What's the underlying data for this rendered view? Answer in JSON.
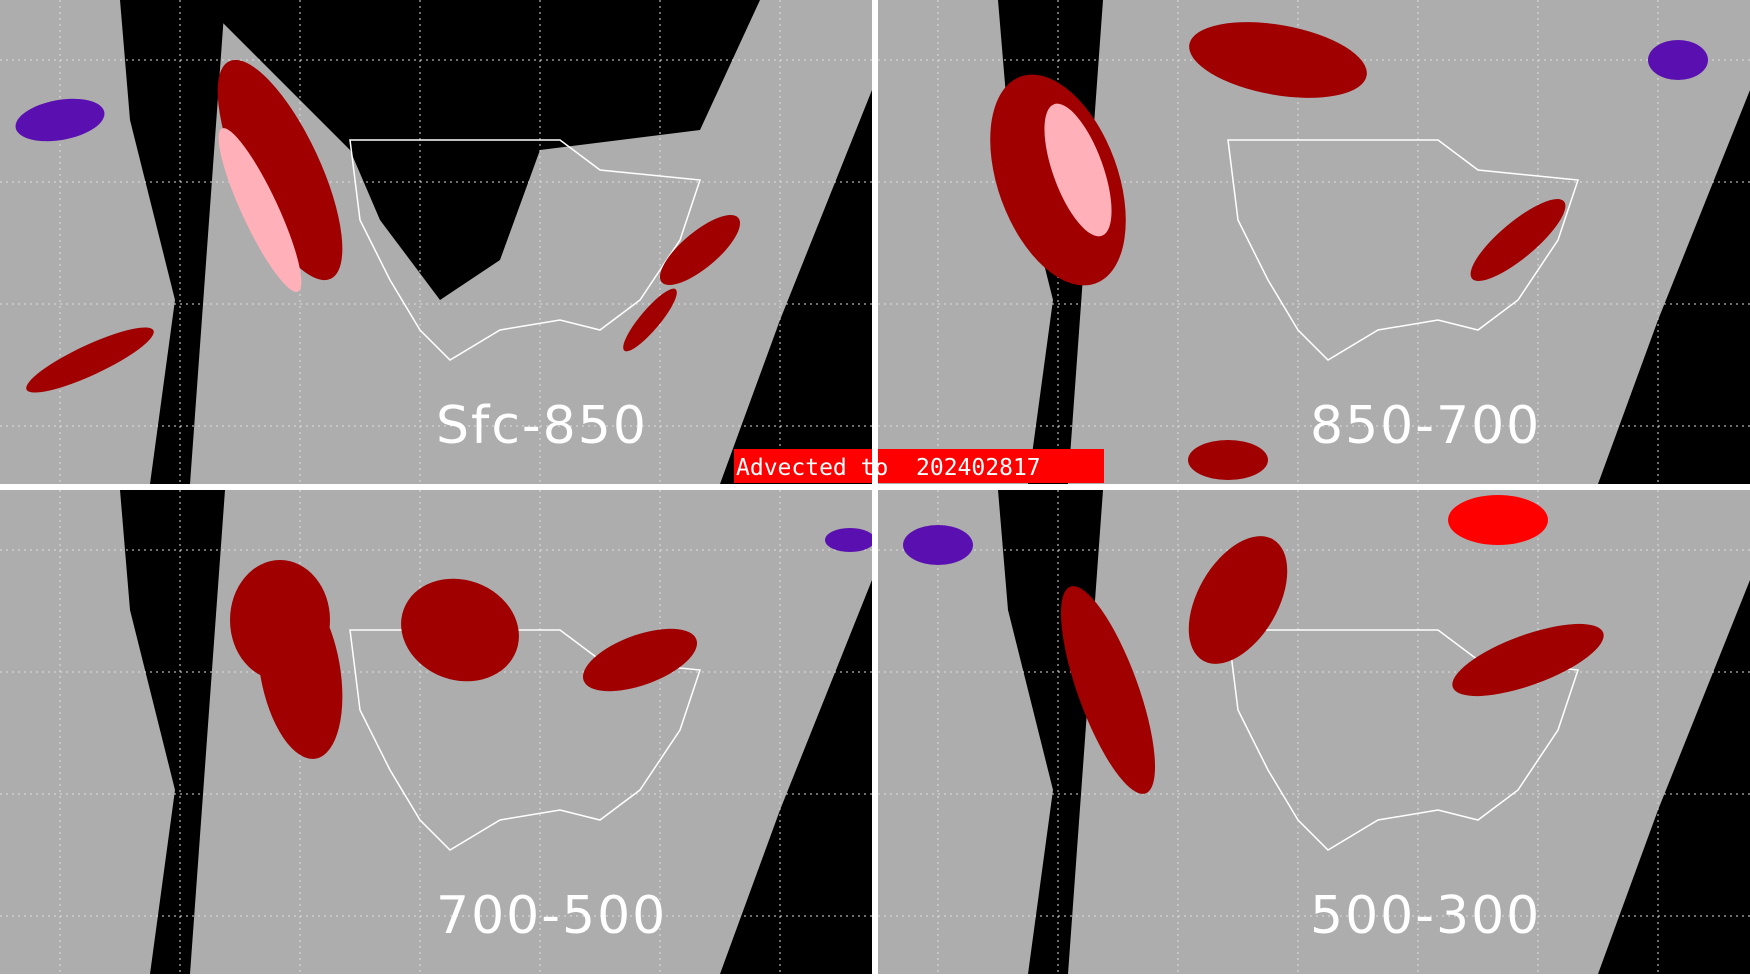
{
  "banner": {
    "text": "Advected to  202402817"
  },
  "panels": [
    {
      "label": "Sfc-850"
    },
    {
      "label": "850-700"
    },
    {
      "label": "700-500"
    },
    {
      "label": "500-300"
    }
  ],
  "colors": {
    "background": "#adadad",
    "no_data": "#000000",
    "low": "#ffb0b8",
    "mid": "#a00000",
    "high": "#ff0000",
    "purple": "#5a10b0",
    "coastline": "#ffffff"
  }
}
